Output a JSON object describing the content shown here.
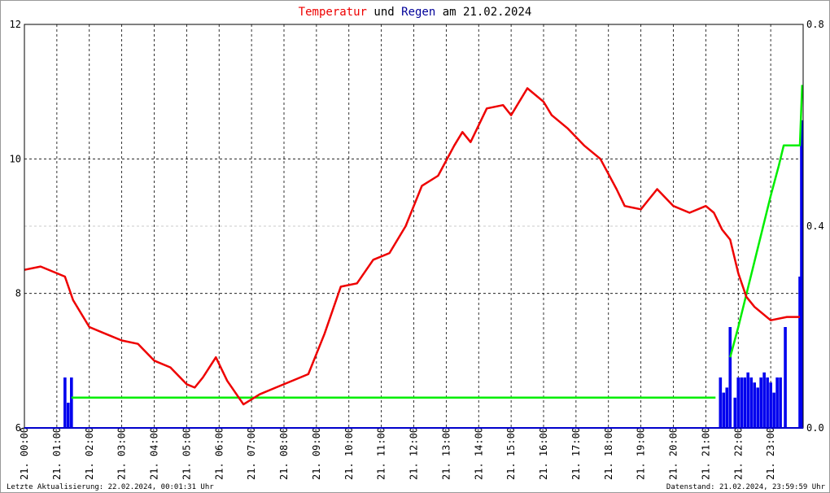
{
  "chart_data": {
    "type": "combo",
    "title": [
      {
        "text": "Temperatur",
        "color": "#ee0000"
      },
      {
        "text": "und",
        "color": "#000000"
      },
      {
        "text": "Regen",
        "color": "#000099"
      },
      {
        "text": "am 21.02.2024",
        "color": "#000000"
      }
    ],
    "footer_left": "Letzte Aktualisierung: 22.02.2024, 00:01:31 Uhr",
    "footer_right": "Datenstand: 21.02.2024, 23:59:59 Uhr",
    "xlim": [
      0,
      24
    ],
    "xticks": [
      {
        "value": 0,
        "label": "21. 00:00"
      },
      {
        "value": 1,
        "label": "21. 01:00"
      },
      {
        "value": 2,
        "label": "21. 02:00"
      },
      {
        "value": 3,
        "label": "21. 03:00"
      },
      {
        "value": 4,
        "label": "21. 04:00"
      },
      {
        "value": 5,
        "label": "21. 05:00"
      },
      {
        "value": 6,
        "label": "21. 06:00"
      },
      {
        "value": 7,
        "label": "21. 07:00"
      },
      {
        "value": 8,
        "label": "21. 08:00"
      },
      {
        "value": 9,
        "label": "21. 09:00"
      },
      {
        "value": 10,
        "label": "21. 10:00"
      },
      {
        "value": 11,
        "label": "21. 11:00"
      },
      {
        "value": 12,
        "label": "21. 12:00"
      },
      {
        "value": 13,
        "label": "21. 13:00"
      },
      {
        "value": 14,
        "label": "21. 14:00"
      },
      {
        "value": 15,
        "label": "21. 15:00"
      },
      {
        "value": 16,
        "label": "21. 16:00"
      },
      {
        "value": 17,
        "label": "21. 17:00"
      },
      {
        "value": 18,
        "label": "21. 18:00"
      },
      {
        "value": 19,
        "label": "21. 19:00"
      },
      {
        "value": 20,
        "label": "21. 20:00"
      },
      {
        "value": 21,
        "label": "21. 21:00"
      },
      {
        "value": 22,
        "label": "21. 22:00"
      },
      {
        "value": 23,
        "label": "21. 23:00"
      }
    ],
    "ylim": [
      6,
      12
    ],
    "yticks": [
      6,
      8,
      10,
      12
    ],
    "y2lim": [
      0,
      0.8
    ],
    "y2ticks": [
      {
        "value": 0,
        "label": "0.0"
      },
      0.4,
      0.8
    ],
    "grid": true,
    "series": [
      {
        "name": "Regen",
        "type": "bar",
        "axis": "y2",
        "color": "#0000ee",
        "x": [
          1.25,
          1.35,
          1.45,
          21.45,
          21.55,
          21.65,
          21.75,
          21.9,
          22.0,
          22.1,
          22.2,
          22.3,
          22.4,
          22.5,
          22.6,
          22.7,
          22.8,
          22.9,
          23.0,
          23.1,
          23.2,
          23.3,
          23.45,
          23.9,
          23.95
        ],
        "values": [
          0.1,
          0.05,
          0.1,
          0.1,
          0.07,
          0.08,
          0.2,
          0.06,
          0.1,
          0.1,
          0.1,
          0.11,
          0.1,
          0.09,
          0.08,
          0.1,
          0.11,
          0.1,
          0.09,
          0.07,
          0.1,
          0.1,
          0.2,
          0.3,
          0.61
        ]
      },
      {
        "name": "Regensumme",
        "type": "line",
        "axis": "y2",
        "color": "#00ee00",
        "x": [
          1.45,
          21.3,
          21.5,
          21.75,
          22.0,
          22.5,
          23.0,
          23.25,
          23.4,
          23.9,
          23.97
        ],
        "values": [
          0.06,
          0.06,
          null,
          0.14,
          0.2,
          0.33,
          0.46,
          0.52,
          0.56,
          0.56,
          0.68
        ]
      },
      {
        "name": "Temperatur",
        "type": "line",
        "axis": "y",
        "color": "#ee0000",
        "x": [
          0,
          0.5,
          1.0,
          1.25,
          1.5,
          2.0,
          2.5,
          3.0,
          3.5,
          4.0,
          4.5,
          5.0,
          5.25,
          5.5,
          5.9,
          6.25,
          6.75,
          7.25,
          7.75,
          8.25,
          8.75,
          9.25,
          9.75,
          10.25,
          10.75,
          11.25,
          11.75,
          12.25,
          12.75,
          13.25,
          13.5,
          13.75,
          14.25,
          14.75,
          15.0,
          15.5,
          16.0,
          16.25,
          16.75,
          17.25,
          17.75,
          18.25,
          18.5,
          19.0,
          19.25,
          19.5,
          20.0,
          20.5,
          21.0,
          21.25,
          21.5,
          21.75,
          22.0,
          22.25,
          22.5,
          23.0,
          23.5,
          23.9
        ],
        "values": [
          8.35,
          8.4,
          8.3,
          8.25,
          7.9,
          7.5,
          7.4,
          7.3,
          7.25,
          7.0,
          6.9,
          6.65,
          6.6,
          6.75,
          7.05,
          6.7,
          6.35,
          6.5,
          6.6,
          6.7,
          6.8,
          7.4,
          8.1,
          8.15,
          8.5,
          8.6,
          9.0,
          9.6,
          9.75,
          10.2,
          10.4,
          10.25,
          10.75,
          10.8,
          10.65,
          11.05,
          10.85,
          10.65,
          10.45,
          10.2,
          10.0,
          9.55,
          9.3,
          9.25,
          9.4,
          9.55,
          9.3,
          9.2,
          9.3,
          9.2,
          8.95,
          8.8,
          8.3,
          7.95,
          7.8,
          7.6,
          7.65,
          7.65
        ]
      }
    ]
  }
}
